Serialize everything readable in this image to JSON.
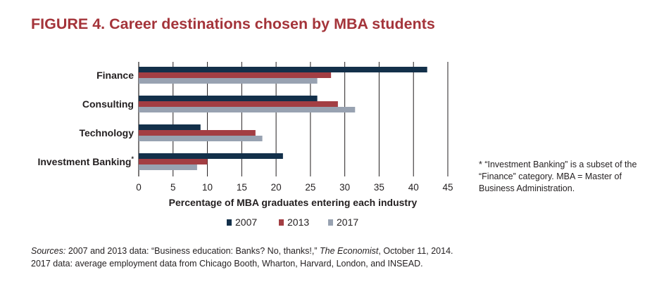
{
  "figure": {
    "title": "FIGURE 4. Career destinations chosen by MBA students",
    "footnote": "* “Investment Banking” is a subset of the “Finance” category. MBA = Master of Business Administration.",
    "sources": {
      "label": "Sources:",
      "line1_text": "2007 and 2013 data: “Business education: Banks? No, thanks!,”",
      "line1_publication": "The Economist",
      "line1_date": ",  October 11, 2014.",
      "line2": "2017 data: average employment data from Chicago Booth, Wharton, Harvard, London, and INSEAD."
    }
  },
  "chart_data": {
    "type": "bar",
    "orientation": "horizontal",
    "categories": [
      "Finance",
      "Consulting",
      "Technology",
      "Investment Banking"
    ],
    "category_markers": [
      "",
      "",
      "",
      "*"
    ],
    "series": [
      {
        "name": "2007",
        "color": "#13304a",
        "values": [
          42,
          26,
          9,
          21
        ]
      },
      {
        "name": "2013",
        "color": "#a33e43",
        "values": [
          28,
          29,
          17,
          10
        ]
      },
      {
        "name": "2017",
        "color": "#98a2b1",
        "values": [
          26,
          31.5,
          18,
          8.5
        ]
      }
    ],
    "xlabel": "Percentage of MBA graduates entering each industry",
    "ylabel": "",
    "xlim": [
      0,
      45
    ],
    "xticks": [
      0,
      5,
      10,
      15,
      20,
      25,
      30,
      35,
      40,
      45
    ],
    "grid": true,
    "legend_position": "bottom"
  }
}
